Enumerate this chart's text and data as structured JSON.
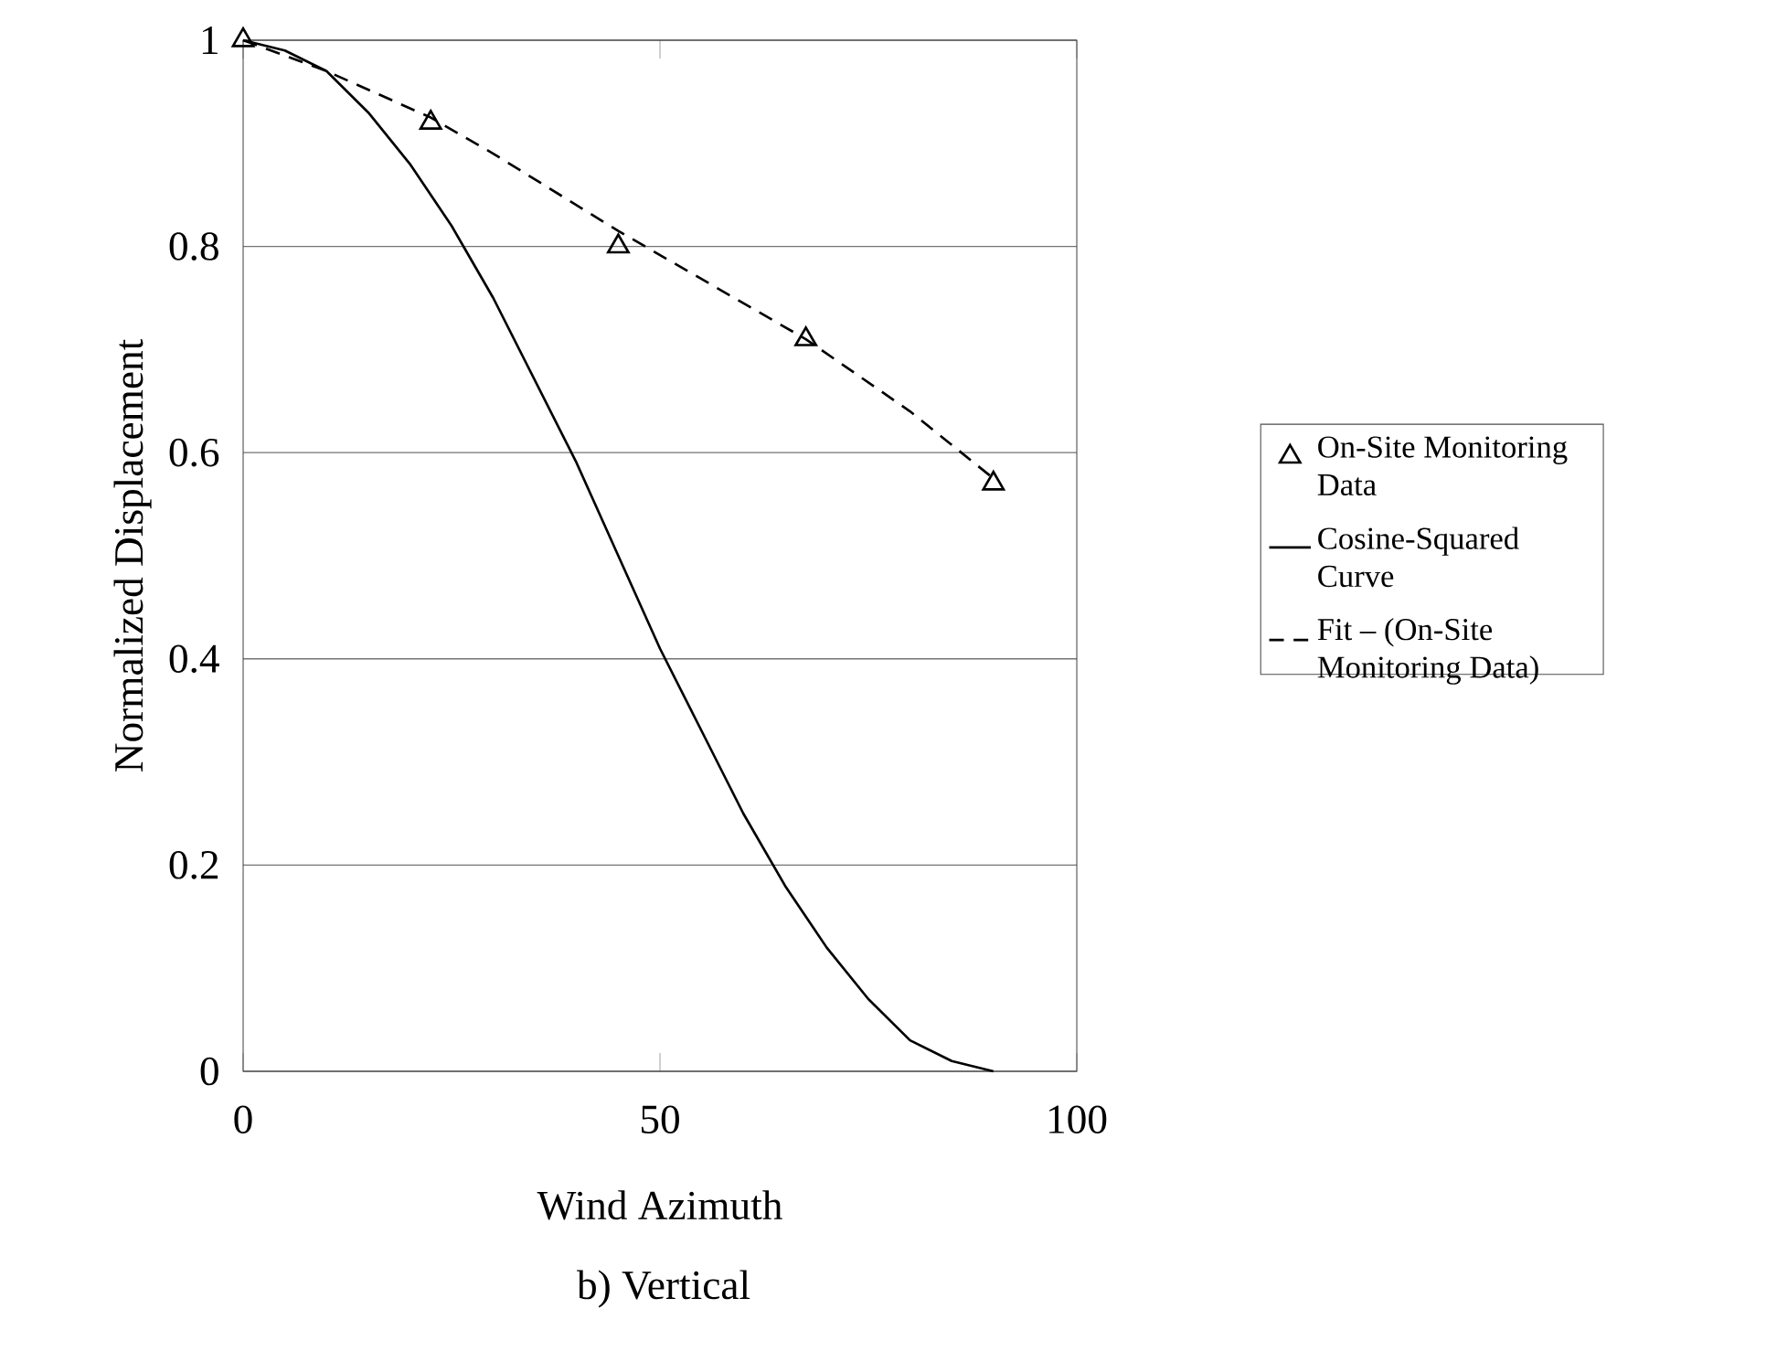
{
  "chart_data": {
    "type": "line",
    "xlabel": "Wind Azimuth",
    "ylabel": "Normalized Displacement",
    "annotations": [
      "b) Vertical"
    ],
    "xlim": [
      0,
      100
    ],
    "ylim": [
      0,
      1
    ],
    "xticks": [
      0,
      50,
      100
    ],
    "yticks": [
      0,
      0.2,
      0.4,
      0.6,
      0.8,
      1
    ],
    "grid": "y",
    "legend": "right",
    "series": [
      {
        "name": "On-Site Monitoring Data",
        "type": "scatter",
        "marker": "triangle",
        "color": "#000000",
        "x": [
          0,
          22.5,
          45,
          67.5,
          90
        ],
        "values": [
          1,
          0.92,
          0.8,
          0.71,
          0.57
        ]
      },
      {
        "name": "Cosine-Squared Curve",
        "line_style": "solid",
        "color": "#000000",
        "x": [
          0,
          5,
          10,
          15,
          20,
          25,
          30,
          35,
          40,
          45,
          50,
          55,
          60,
          65,
          70,
          75,
          80,
          85,
          90
        ],
        "values": [
          1,
          0.99,
          0.97,
          0.93,
          0.88,
          0.82,
          0.75,
          0.67,
          0.59,
          0.5,
          0.41,
          0.33,
          0.25,
          0.18,
          0.12,
          0.07,
          0.03,
          0.01,
          0
        ]
      },
      {
        "name": "Fit – (On-Site Monitoring Data)",
        "type": "line",
        "line_style": "dashed",
        "color": "#000000",
        "x": [
          0,
          10,
          22.5,
          30,
          45,
          60,
          67.5,
          80,
          90
        ],
        "values": [
          1,
          0.97,
          0.925,
          0.89,
          0.815,
          0.745,
          0.71,
          0.64,
          0.575
        ]
      }
    ]
  }
}
